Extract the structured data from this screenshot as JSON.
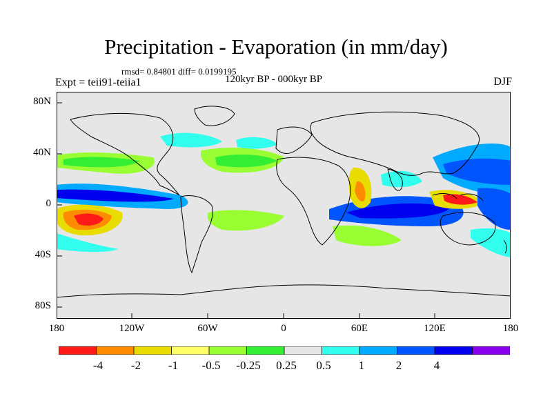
{
  "title": "Precipitation - Evaporation (in mm/day)",
  "stats": "rmsd= 0.84801 diff= 0.0199195",
  "experiment": "Expt = teii91-teiia1",
  "period": "120kyr BP - 000kyr BP",
  "season": "DJF",
  "y_axis_labels": [
    "80N",
    "40N",
    "0",
    "40S",
    "80S"
  ],
  "x_axis_labels": [
    "180",
    "120W",
    "60W",
    "0",
    "60E",
    "120E",
    "180"
  ],
  "colorbar": {
    "colors": [
      "#ff1a1a",
      "#ff8c00",
      "#e8dc00",
      "#ffff66",
      "#99ff33",
      "#33ee33",
      "#e6e6e6",
      "#33ffee",
      "#00aaff",
      "#0055ff",
      "#0000ee",
      "#8800ee"
    ],
    "labels": [
      "-4",
      "-2",
      "-1",
      "-0.5",
      "-0.25",
      "0.25",
      "0.5",
      "1",
      "2",
      "4"
    ]
  },
  "background_color": "#e6e6e6"
}
